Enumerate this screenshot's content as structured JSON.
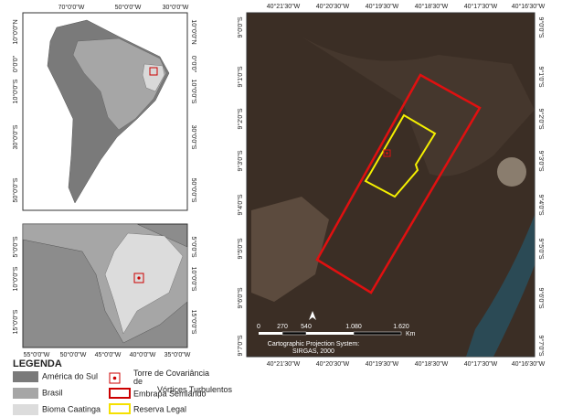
{
  "south_america_map": {
    "top_labels": [
      "70°0'0\"W",
      "50°0'0\"W",
      "30°0'0\"W"
    ],
    "lat_labels": [
      "10°0'0\"N",
      "0°0'0\"",
      "10°0'0\"S",
      "30°0'0\"S",
      "50°0'0\"S"
    ]
  },
  "northeast_map": {
    "lat_labels": [
      "5°0'0\"S",
      "10°0'0\"S",
      "15°0'0\"S"
    ],
    "bottom_labels": [
      "55°0'0\"W",
      "50°0'0\"W",
      "45°0'0\"W",
      "40°0'0\"W",
      "35°0'0\"W"
    ]
  },
  "site_map": {
    "lon_labels": [
      "40°21'30\"W",
      "40°20'30\"W",
      "40°19'30\"W",
      "40°18'30\"W",
      "40°17'30\"W",
      "40°16'30\"W"
    ],
    "lat_labels": [
      "9°0'0\"S",
      "9°1'0\"S",
      "9°2'0\"S",
      "9°3'0\"S",
      "9°4'0\"S",
      "9°5'0\"S",
      "9°6'0\"S",
      "9°7'0\"S"
    ],
    "scale_labels": [
      "0",
      "270",
      "540",
      "1.080",
      "1.620"
    ],
    "scale_unit": "Km",
    "projection": [
      "Cartographic Projection System:",
      "SIRGAS, 2000"
    ]
  },
  "legend": {
    "title": "LEGENDA",
    "items": [
      "América do Sul",
      "Brasil",
      "Bioma Caatinga",
      "Torre de Covariância de Vórtices Turbulentos",
      "Embrapa Semiárido",
      "Reserva Legal"
    ]
  }
}
